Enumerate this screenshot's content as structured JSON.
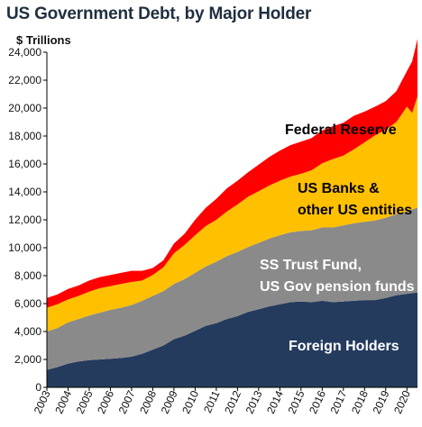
{
  "chart_data": {
    "type": "area",
    "title": "US Government Debt, by Major Holder",
    "ylabel": "$ Trillions",
    "xlabel": "",
    "stacked": true,
    "ylim": [
      0,
      24000
    ],
    "y_ticks": [
      0,
      2000,
      4000,
      6000,
      8000,
      10000,
      12000,
      14000,
      16000,
      18000,
      20000,
      22000,
      24000
    ],
    "y_tick_labels": [
      "0",
      "2,000",
      "4,000",
      "6,000",
      "8,000",
      "10,000",
      "12,000",
      "14,000",
      "16,000",
      "18,000",
      "20,000",
      "22,000",
      "24,000"
    ],
    "x_tick_labels": [
      "2003",
      "2004",
      "2005",
      "2006",
      "2007",
      "2008",
      "2009",
      "2010",
      "2011",
      "2012",
      "2013",
      "2014",
      "2015",
      "2016",
      "2017",
      "2018",
      "2019",
      "2020"
    ],
    "grid": false,
    "x": [
      2003.0,
      2003.5,
      2004.0,
      2004.5,
      2005.0,
      2005.5,
      2006.0,
      2006.5,
      2007.0,
      2007.5,
      2008.0,
      2008.5,
      2009.0,
      2009.5,
      2010.0,
      2010.5,
      2011.0,
      2011.5,
      2012.0,
      2012.5,
      2013.0,
      2013.5,
      2014.0,
      2014.5,
      2015.0,
      2015.5,
      2016.0,
      2016.5,
      2017.0,
      2017.5,
      2018.0,
      2018.5,
      2019.0,
      2019.5,
      2020.0,
      2020.25,
      2020.5
    ],
    "series": [
      {
        "name": "Foreign Holders",
        "color": "#243b5e",
        "values": [
          1250,
          1450,
          1700,
          1850,
          1950,
          2000,
          2050,
          2100,
          2200,
          2400,
          2700,
          3000,
          3450,
          3700,
          4050,
          4400,
          4600,
          4900,
          5100,
          5400,
          5600,
          5800,
          5950,
          6100,
          6150,
          6100,
          6200,
          6100,
          6150,
          6200,
          6250,
          6250,
          6400,
          6600,
          6700,
          6750,
          6800
        ]
      },
      {
        "name": "SS Trust Fund, US Gov pension funds",
        "color": "#8a8a8a",
        "values": [
          2750,
          2800,
          2950,
          3050,
          3200,
          3350,
          3500,
          3600,
          3700,
          3800,
          3850,
          3900,
          3950,
          4050,
          4150,
          4250,
          4400,
          4500,
          4600,
          4650,
          4750,
          4850,
          4950,
          5000,
          5050,
          5150,
          5250,
          5350,
          5450,
          5550,
          5600,
          5700,
          5750,
          5800,
          5900,
          6000,
          6050
        ]
      },
      {
        "name": "US Banks & other US entities",
        "color": "#ffc000",
        "values": [
          1700,
          1700,
          1650,
          1650,
          1700,
          1750,
          1700,
          1700,
          1650,
          1450,
          1500,
          1700,
          2200,
          2450,
          2700,
          2900,
          3000,
          3200,
          3400,
          3600,
          3700,
          3800,
          3900,
          4000,
          4100,
          4300,
          4600,
          4900,
          5000,
          5300,
          5700,
          6100,
          6300,
          6600,
          7500,
          6900,
          8000
        ]
      },
      {
        "name": "Federal Reserve",
        "color": "#ff0000",
        "values": [
          700,
          700,
          750,
          750,
          800,
          800,
          800,
          800,
          800,
          700,
          500,
          500,
          700,
          800,
          1100,
          1300,
          1500,
          1650,
          1700,
          1750,
          1900,
          2050,
          2150,
          2250,
          2300,
          2300,
          2350,
          2350,
          2350,
          2400,
          2200,
          2050,
          2050,
          2200,
          2550,
          3700,
          4100
        ]
      }
    ],
    "annotations": [
      {
        "text": "Federal Reserve"
      },
      {
        "text": "US Banks &"
      },
      {
        "text": "other US entities"
      },
      {
        "text": "SS Trust Fund,"
      },
      {
        "text": "US Gov pension funds"
      },
      {
        "text": "Foreign Holders"
      }
    ]
  }
}
